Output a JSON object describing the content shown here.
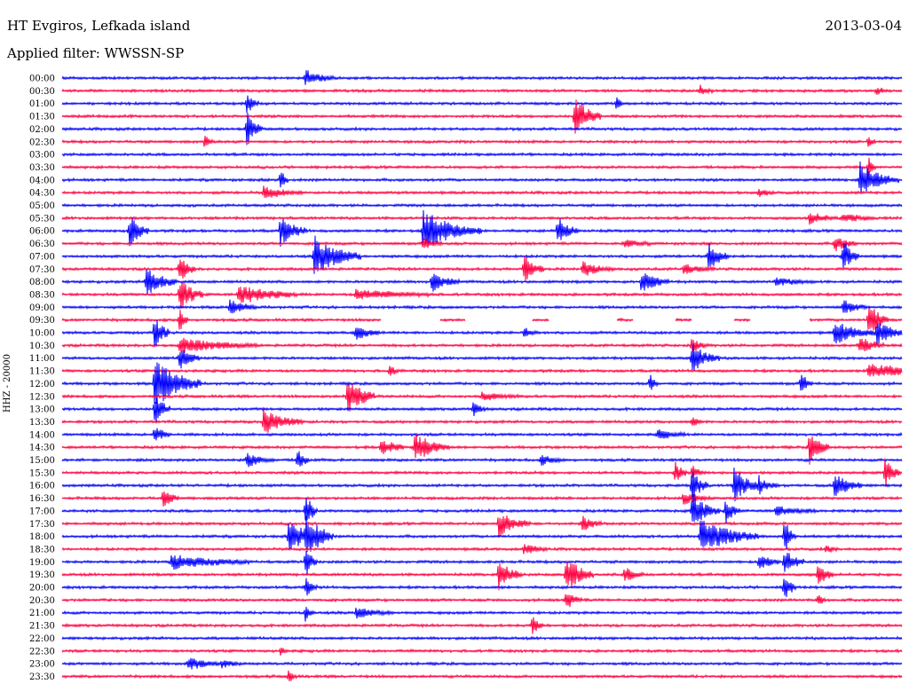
{
  "header": {
    "station": "HT Evgiros, Lefkada island",
    "date": "2013-03-04",
    "filter": "Applied filter: WWSSN-SP"
  },
  "channel_label": "HHZ - 20000",
  "colors": {
    "trace_a": "#0000ff",
    "trace_b": "#ff0040"
  },
  "rows": [
    {
      "time": "00:00",
      "color": "blue",
      "events": [
        [
          0.29,
          0.6,
          14
        ]
      ]
    },
    {
      "time": "00:30",
      "color": "red",
      "events": [
        [
          0.76,
          0.4,
          6
        ],
        [
          0.97,
          0.3,
          6
        ]
      ]
    },
    {
      "time": "01:00",
      "color": "blue",
      "events": [
        [
          0.22,
          1.0,
          6
        ],
        [
          0.66,
          0.5,
          4
        ]
      ]
    },
    {
      "time": "01:30",
      "color": "red",
      "events": [
        [
          0.61,
          1.6,
          14
        ]
      ]
    },
    {
      "time": "02:00",
      "color": "blue",
      "events": [
        [
          0.22,
          1.4,
          8
        ]
      ]
    },
    {
      "time": "02:30",
      "color": "red",
      "events": [
        [
          0.17,
          0.6,
          4
        ],
        [
          0.96,
          0.4,
          4
        ]
      ]
    },
    {
      "time": "03:00",
      "color": "blue",
      "events": []
    },
    {
      "time": "03:30",
      "color": "red",
      "events": [
        [
          0.96,
          0.8,
          4
        ]
      ]
    },
    {
      "time": "04:00",
      "color": "blue",
      "events": [
        [
          0.26,
          1.2,
          4
        ],
        [
          0.95,
          1.4,
          20
        ]
      ]
    },
    {
      "time": "04:30",
      "color": "red",
      "events": [
        [
          0.24,
          0.5,
          20
        ],
        [
          0.83,
          0.3,
          8
        ]
      ]
    },
    {
      "time": "05:00",
      "color": "blue",
      "events": []
    },
    {
      "time": "05:30",
      "color": "red",
      "events": [
        [
          0.89,
          0.5,
          14
        ],
        [
          0.93,
          0.4,
          16
        ]
      ]
    },
    {
      "time": "06:00",
      "color": "blue",
      "events": [
        [
          0.08,
          1.4,
          10
        ],
        [
          0.26,
          1.2,
          14
        ],
        [
          0.43,
          1.6,
          30
        ],
        [
          0.59,
          1.2,
          10
        ]
      ]
    },
    {
      "time": "06:30",
      "color": "red",
      "events": [
        [
          0.43,
          0.5,
          10
        ],
        [
          0.67,
          0.3,
          14
        ],
        [
          0.92,
          0.6,
          12
        ]
      ]
    },
    {
      "time": "07:00",
      "color": "blue",
      "events": [
        [
          0.3,
          1.6,
          24
        ],
        [
          0.77,
          1.2,
          10
        ],
        [
          0.93,
          1.4,
          8
        ]
      ]
    },
    {
      "time": "07:30",
      "color": "red",
      "events": [
        [
          0.14,
          1.2,
          8
        ],
        [
          0.55,
          1.2,
          10
        ],
        [
          0.62,
          0.6,
          16
        ],
        [
          0.74,
          0.4,
          16
        ]
      ]
    },
    {
      "time": "08:00",
      "color": "blue",
      "events": [
        [
          0.1,
          1.2,
          16
        ],
        [
          0.44,
          0.8,
          14
        ],
        [
          0.69,
          0.9,
          14
        ],
        [
          0.85,
          0.3,
          20
        ]
      ]
    },
    {
      "time": "08:30",
      "color": "red",
      "events": [
        [
          0.14,
          1.4,
          12
        ],
        [
          0.21,
          0.8,
          30
        ],
        [
          0.35,
          0.4,
          40
        ]
      ]
    },
    {
      "time": "09:00",
      "color": "blue",
      "events": [
        [
          0.2,
          0.6,
          14
        ],
        [
          0.93,
          0.6,
          12
        ]
      ]
    },
    {
      "time": "09:30",
      "color": "red",
      "events": [
        [
          0.14,
          1.2,
          4
        ],
        [
          0.96,
          1.6,
          10
        ]
      ]
    },
    {
      "time": "10:00",
      "color": "blue",
      "events": [
        [
          0.11,
          1.4,
          8
        ],
        [
          0.35,
          0.6,
          12
        ],
        [
          0.55,
          0.4,
          8
        ],
        [
          0.92,
          1.0,
          20
        ],
        [
          0.97,
          1.0,
          14
        ]
      ]
    },
    {
      "time": "10:30",
      "color": "red",
      "events": [
        [
          0.14,
          0.6,
          40
        ],
        [
          0.75,
          0.6,
          8
        ],
        [
          0.95,
          0.8,
          12
        ]
      ]
    },
    {
      "time": "11:00",
      "color": "blue",
      "events": [
        [
          0.14,
          1.0,
          10
        ],
        [
          0.75,
          1.2,
          14
        ]
      ]
    },
    {
      "time": "11:30",
      "color": "red",
      "events": [
        [
          0.39,
          0.4,
          6
        ],
        [
          0.96,
          0.6,
          40
        ]
      ]
    },
    {
      "time": "12:00",
      "color": "blue",
      "events": [
        [
          0.11,
          2.0,
          24
        ],
        [
          0.7,
          0.8,
          4
        ],
        [
          0.88,
          0.9,
          6
        ]
      ]
    },
    {
      "time": "12:30",
      "color": "red",
      "events": [
        [
          0.34,
          1.6,
          14
        ],
        [
          0.5,
          0.3,
          20
        ]
      ]
    },
    {
      "time": "13:00",
      "color": "blue",
      "events": [
        [
          0.11,
          1.4,
          8
        ],
        [
          0.49,
          0.6,
          6
        ]
      ]
    },
    {
      "time": "13:30",
      "color": "red",
      "events": [
        [
          0.24,
          1.0,
          20
        ],
        [
          0.75,
          0.4,
          6
        ]
      ]
    },
    {
      "time": "14:00",
      "color": "blue",
      "events": [
        [
          0.11,
          0.8,
          8
        ],
        [
          0.71,
          0.4,
          14
        ]
      ]
    },
    {
      "time": "14:30",
      "color": "red",
      "events": [
        [
          0.38,
          0.8,
          12
        ],
        [
          0.42,
          1.2,
          18
        ],
        [
          0.89,
          1.4,
          10
        ]
      ]
    },
    {
      "time": "15:00",
      "color": "blue",
      "events": [
        [
          0.22,
          0.6,
          14
        ],
        [
          0.28,
          1.0,
          6
        ],
        [
          0.57,
          0.4,
          12
        ]
      ]
    },
    {
      "time": "15:30",
      "color": "red",
      "events": [
        [
          0.73,
          1.0,
          6
        ],
        [
          0.75,
          0.6,
          6
        ],
        [
          0.98,
          1.2,
          8
        ]
      ]
    },
    {
      "time": "16:00",
      "color": "blue",
      "events": [
        [
          0.75,
          1.4,
          8
        ],
        [
          0.8,
          1.4,
          14
        ],
        [
          0.83,
          0.6,
          10
        ],
        [
          0.92,
          1.0,
          14
        ]
      ]
    },
    {
      "time": "16:30",
      "color": "red",
      "events": [
        [
          0.12,
          0.8,
          8
        ],
        [
          0.74,
          0.5,
          14
        ]
      ]
    },
    {
      "time": "17:00",
      "color": "blue",
      "events": [
        [
          0.29,
          1.6,
          6
        ],
        [
          0.75,
          1.4,
          14
        ],
        [
          0.79,
          1.0,
          8
        ],
        [
          0.85,
          0.4,
          20
        ]
      ]
    },
    {
      "time": "17:30",
      "color": "red",
      "events": [
        [
          0.52,
          1.0,
          16
        ],
        [
          0.62,
          0.6,
          10
        ]
      ]
    },
    {
      "time": "18:00",
      "color": "blue",
      "events": [
        [
          0.27,
          1.2,
          20
        ],
        [
          0.29,
          1.6,
          14
        ],
        [
          0.76,
          1.4,
          30
        ],
        [
          0.86,
          1.6,
          6
        ]
      ]
    },
    {
      "time": "18:30",
      "color": "red",
      "events": [
        [
          0.55,
          0.4,
          12
        ],
        [
          0.91,
          0.3,
          6
        ]
      ]
    },
    {
      "time": "19:00",
      "color": "blue",
      "events": [
        [
          0.13,
          0.6,
          40
        ],
        [
          0.29,
          1.2,
          6
        ],
        [
          0.83,
          0.8,
          10
        ],
        [
          0.86,
          1.2,
          10
        ]
      ]
    },
    {
      "time": "19:30",
      "color": "red",
      "events": [
        [
          0.52,
          1.2,
          12
        ],
        [
          0.6,
          1.6,
          14
        ],
        [
          0.67,
          0.6,
          10
        ],
        [
          0.9,
          1.0,
          8
        ]
      ]
    },
    {
      "time": "20:00",
      "color": "blue",
      "events": [
        [
          0.29,
          0.8,
          6
        ],
        [
          0.86,
          1.2,
          6
        ]
      ]
    },
    {
      "time": "20:30",
      "color": "red",
      "events": [
        [
          0.6,
          0.8,
          8
        ],
        [
          0.9,
          0.6,
          4
        ]
      ]
    },
    {
      "time": "21:00",
      "color": "blue",
      "events": [
        [
          0.29,
          0.8,
          4
        ],
        [
          0.35,
          0.4,
          20
        ]
      ]
    },
    {
      "time": "21:30",
      "color": "red",
      "events": [
        [
          0.56,
          0.8,
          6
        ]
      ]
    },
    {
      "time": "22:00",
      "color": "blue",
      "events": []
    },
    {
      "time": "22:30",
      "color": "red",
      "events": [
        [
          0.26,
          0.3,
          4
        ]
      ]
    },
    {
      "time": "23:00",
      "color": "blue",
      "events": [
        [
          0.15,
          0.5,
          18
        ],
        [
          0.19,
          0.3,
          10
        ]
      ]
    },
    {
      "time": "23:30",
      "color": "red",
      "events": [
        [
          0.27,
          0.6,
          4
        ]
      ]
    }
  ],
  "gaps": [
    {
      "time": "09:30",
      "segments": [
        [
          0.38,
          0.45
        ],
        [
          0.48,
          0.56
        ],
        [
          0.58,
          0.62
        ],
        [
          0.62,
          0.66
        ],
        [
          0.68,
          0.73
        ],
        [
          0.75,
          0.8
        ],
        [
          0.82,
          0.89
        ]
      ]
    }
  ]
}
